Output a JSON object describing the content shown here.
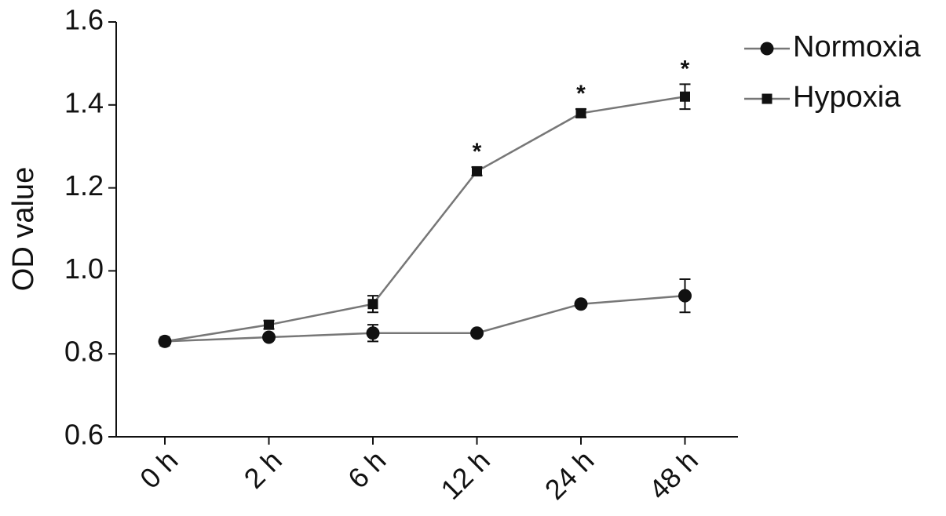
{
  "chart_data": {
    "type": "line",
    "y_label": "OD value",
    "categories": [
      "0 h",
      "2 h",
      "6 h",
      "12 h",
      "24 h",
      "48 h"
    ],
    "series": [
      {
        "name": "Normoxia",
        "color": "#777777",
        "marker": "circle",
        "marker_color": "#111111",
        "values": [
          0.83,
          0.84,
          0.85,
          0.85,
          0.92,
          0.94
        ],
        "errors": [
          0,
          0,
          0.02,
          0,
          0,
          0.04
        ]
      },
      {
        "name": "Hypoxia",
        "color": "#777777",
        "marker": "square",
        "marker_color": "#111111",
        "values": [
          0.83,
          0.87,
          0.92,
          1.24,
          1.38,
          1.42
        ],
        "errors": [
          0,
          0.01,
          0.02,
          0.01,
          0.01,
          0.03
        ],
        "annotations": [
          null,
          null,
          null,
          "*",
          "*",
          "*"
        ]
      }
    ],
    "ylim": [
      0.6,
      1.6
    ],
    "yticks": [
      0.6,
      0.8,
      {
        "value": 1,
        "label": "1.0"
      },
      1.2,
      1.4,
      1.6
    ],
    "legend": "top-right"
  }
}
